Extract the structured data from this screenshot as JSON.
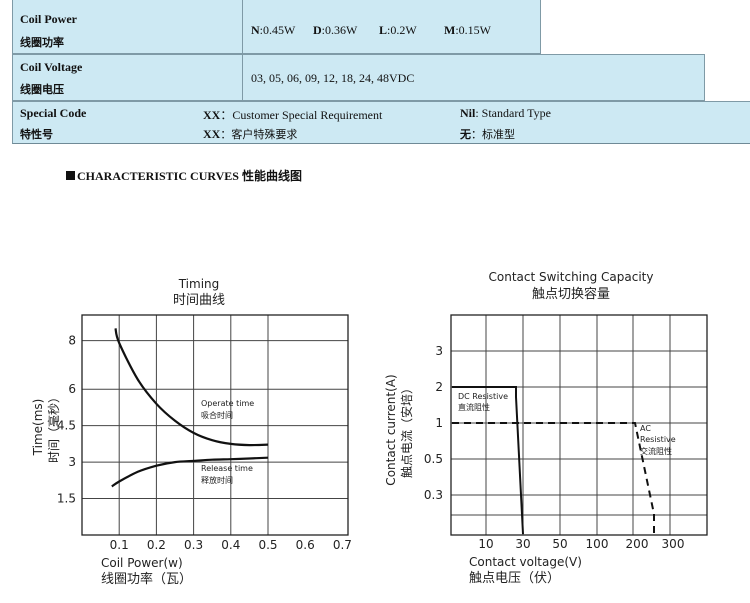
{
  "spec_table": {
    "coil_power": {
      "label_en": "Coil Power",
      "label_cn": "线圈功率",
      "values": [
        {
          "key": "N",
          "val": ":0.45W"
        },
        {
          "key": "D",
          "val": ":0.36W"
        },
        {
          "key": "L",
          "val": ":0.2W"
        },
        {
          "key": "M",
          "val": ":0.15W"
        }
      ]
    },
    "coil_voltage": {
      "label_en": "Coil Voltage",
      "label_cn": "线圈电压",
      "value": "03, 05, 06, 09, 12, 18, 24, 48VDC"
    },
    "special_code": {
      "label_en": "Special Code",
      "label_cn": "特性号",
      "xx_key": "XX",
      "xx_en": "：Customer Special Requirement",
      "xx_cn": "：客户特殊要求",
      "nil_key": "Nil",
      "nil_en": ": Standard Type",
      "nil_cn_key": "无",
      "nil_cn": "：标准型"
    }
  },
  "section_title": "CHARACTERISTIC CURVES 性能曲线图",
  "charts": {
    "timing": {
      "title_en": "Timing",
      "title_cn": "时间曲线",
      "xlabel_en": "Coil Power(w)",
      "xlabel_cn": "线圈功率（瓦）",
      "ylabel_en": "Time(ms)",
      "ylabel_cn": "时间（毫秒）",
      "operate_label_en": "Operate time",
      "operate_label_cn": "吸合时间",
      "release_label_en": "Release time",
      "release_label_cn": "释放时间"
    },
    "switching": {
      "title_en": "Contact Switching Capacity",
      "title_cn": "触点切换容量",
      "xlabel_en": "Contact voltage(V)",
      "xlabel_cn": "触点电压（伏）",
      "ylabel_en": "Contact current(A)",
      "ylabel_cn": "触点电流（安培）",
      "dc_label_en": "DC Resistive",
      "dc_label_cn": "直流阻性",
      "ac_label_1": "AC",
      "ac_label_2": "Resistive",
      "ac_label_cn": "交流阻性"
    }
  },
  "chart_data": [
    {
      "type": "line",
      "title": "Timing 时间曲线",
      "xlabel": "Coil Power(w)",
      "ylabel": "Time(ms)",
      "x_ticks": [
        "0.1",
        "0.2",
        "0.3",
        "0.4",
        "0.5",
        "0.6",
        "0.7"
      ],
      "y_ticks": [
        "1.5",
        "3",
        "4.5",
        "6",
        "8"
      ],
      "series": [
        {
          "name": "Operate time",
          "x": [
            0.09,
            0.1,
            0.15,
            0.2,
            0.25,
            0.3,
            0.35,
            0.4,
            0.45,
            0.5
          ],
          "y": [
            8.5,
            7.9,
            6.4,
            5.4,
            4.7,
            4.2,
            3.9,
            3.75,
            3.7,
            3.72
          ]
        },
        {
          "name": "Release time",
          "x": [
            0.08,
            0.1,
            0.15,
            0.2,
            0.25,
            0.3,
            0.35,
            0.4,
            0.45,
            0.5
          ],
          "y": [
            2.0,
            2.2,
            2.6,
            2.85,
            3.0,
            3.05,
            3.1,
            3.12,
            3.15,
            3.18
          ]
        }
      ]
    },
    {
      "type": "line",
      "title": "Contact Switching Capacity 触点切换容量",
      "xlabel": "Contact voltage(V)",
      "ylabel": "Contact current(A)",
      "x_ticks": [
        "10",
        "30",
        "50",
        "100",
        "200",
        "300"
      ],
      "y_ticks": [
        "0.3",
        "0.5",
        "1",
        "2",
        "3"
      ],
      "series": [
        {
          "name": "DC Resistive",
          "x": [
            0,
            30,
            30,
            30,
            31,
            31,
            31
          ],
          "y": [
            2,
            2,
            1.4,
            1,
            0.5,
            0.3,
            0.1
          ]
        },
        {
          "name": "AC Resistive",
          "x": [
            0,
            125,
            200,
            250,
            250
          ],
          "y": [
            1,
            1,
            0.35,
            0.18,
            0.1
          ]
        }
      ]
    }
  ]
}
